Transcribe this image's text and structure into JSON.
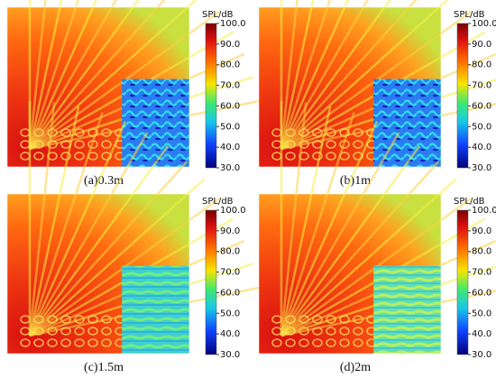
{
  "panels": [
    {
      "caption": "(a)0.3m"
    },
    {
      "caption": "(b)1m"
    },
    {
      "caption": "(c)1.5m"
    },
    {
      "caption": "(d)2m"
    }
  ],
  "colorbar": {
    "title": "SPL/dB",
    "lim": [
      30,
      100
    ],
    "ticks": [
      {
        "value": 100,
        "label": "100.0"
      },
      {
        "value": 90,
        "label": "90.0"
      },
      {
        "value": 80,
        "label": "80.0"
      },
      {
        "value": 70,
        "label": "70.0"
      },
      {
        "value": 60,
        "label": "60.0"
      },
      {
        "value": 50,
        "label": "50.0"
      },
      {
        "value": 40,
        "label": "40.0"
      },
      {
        "value": 30,
        "label": "30.0"
      }
    ]
  }
}
